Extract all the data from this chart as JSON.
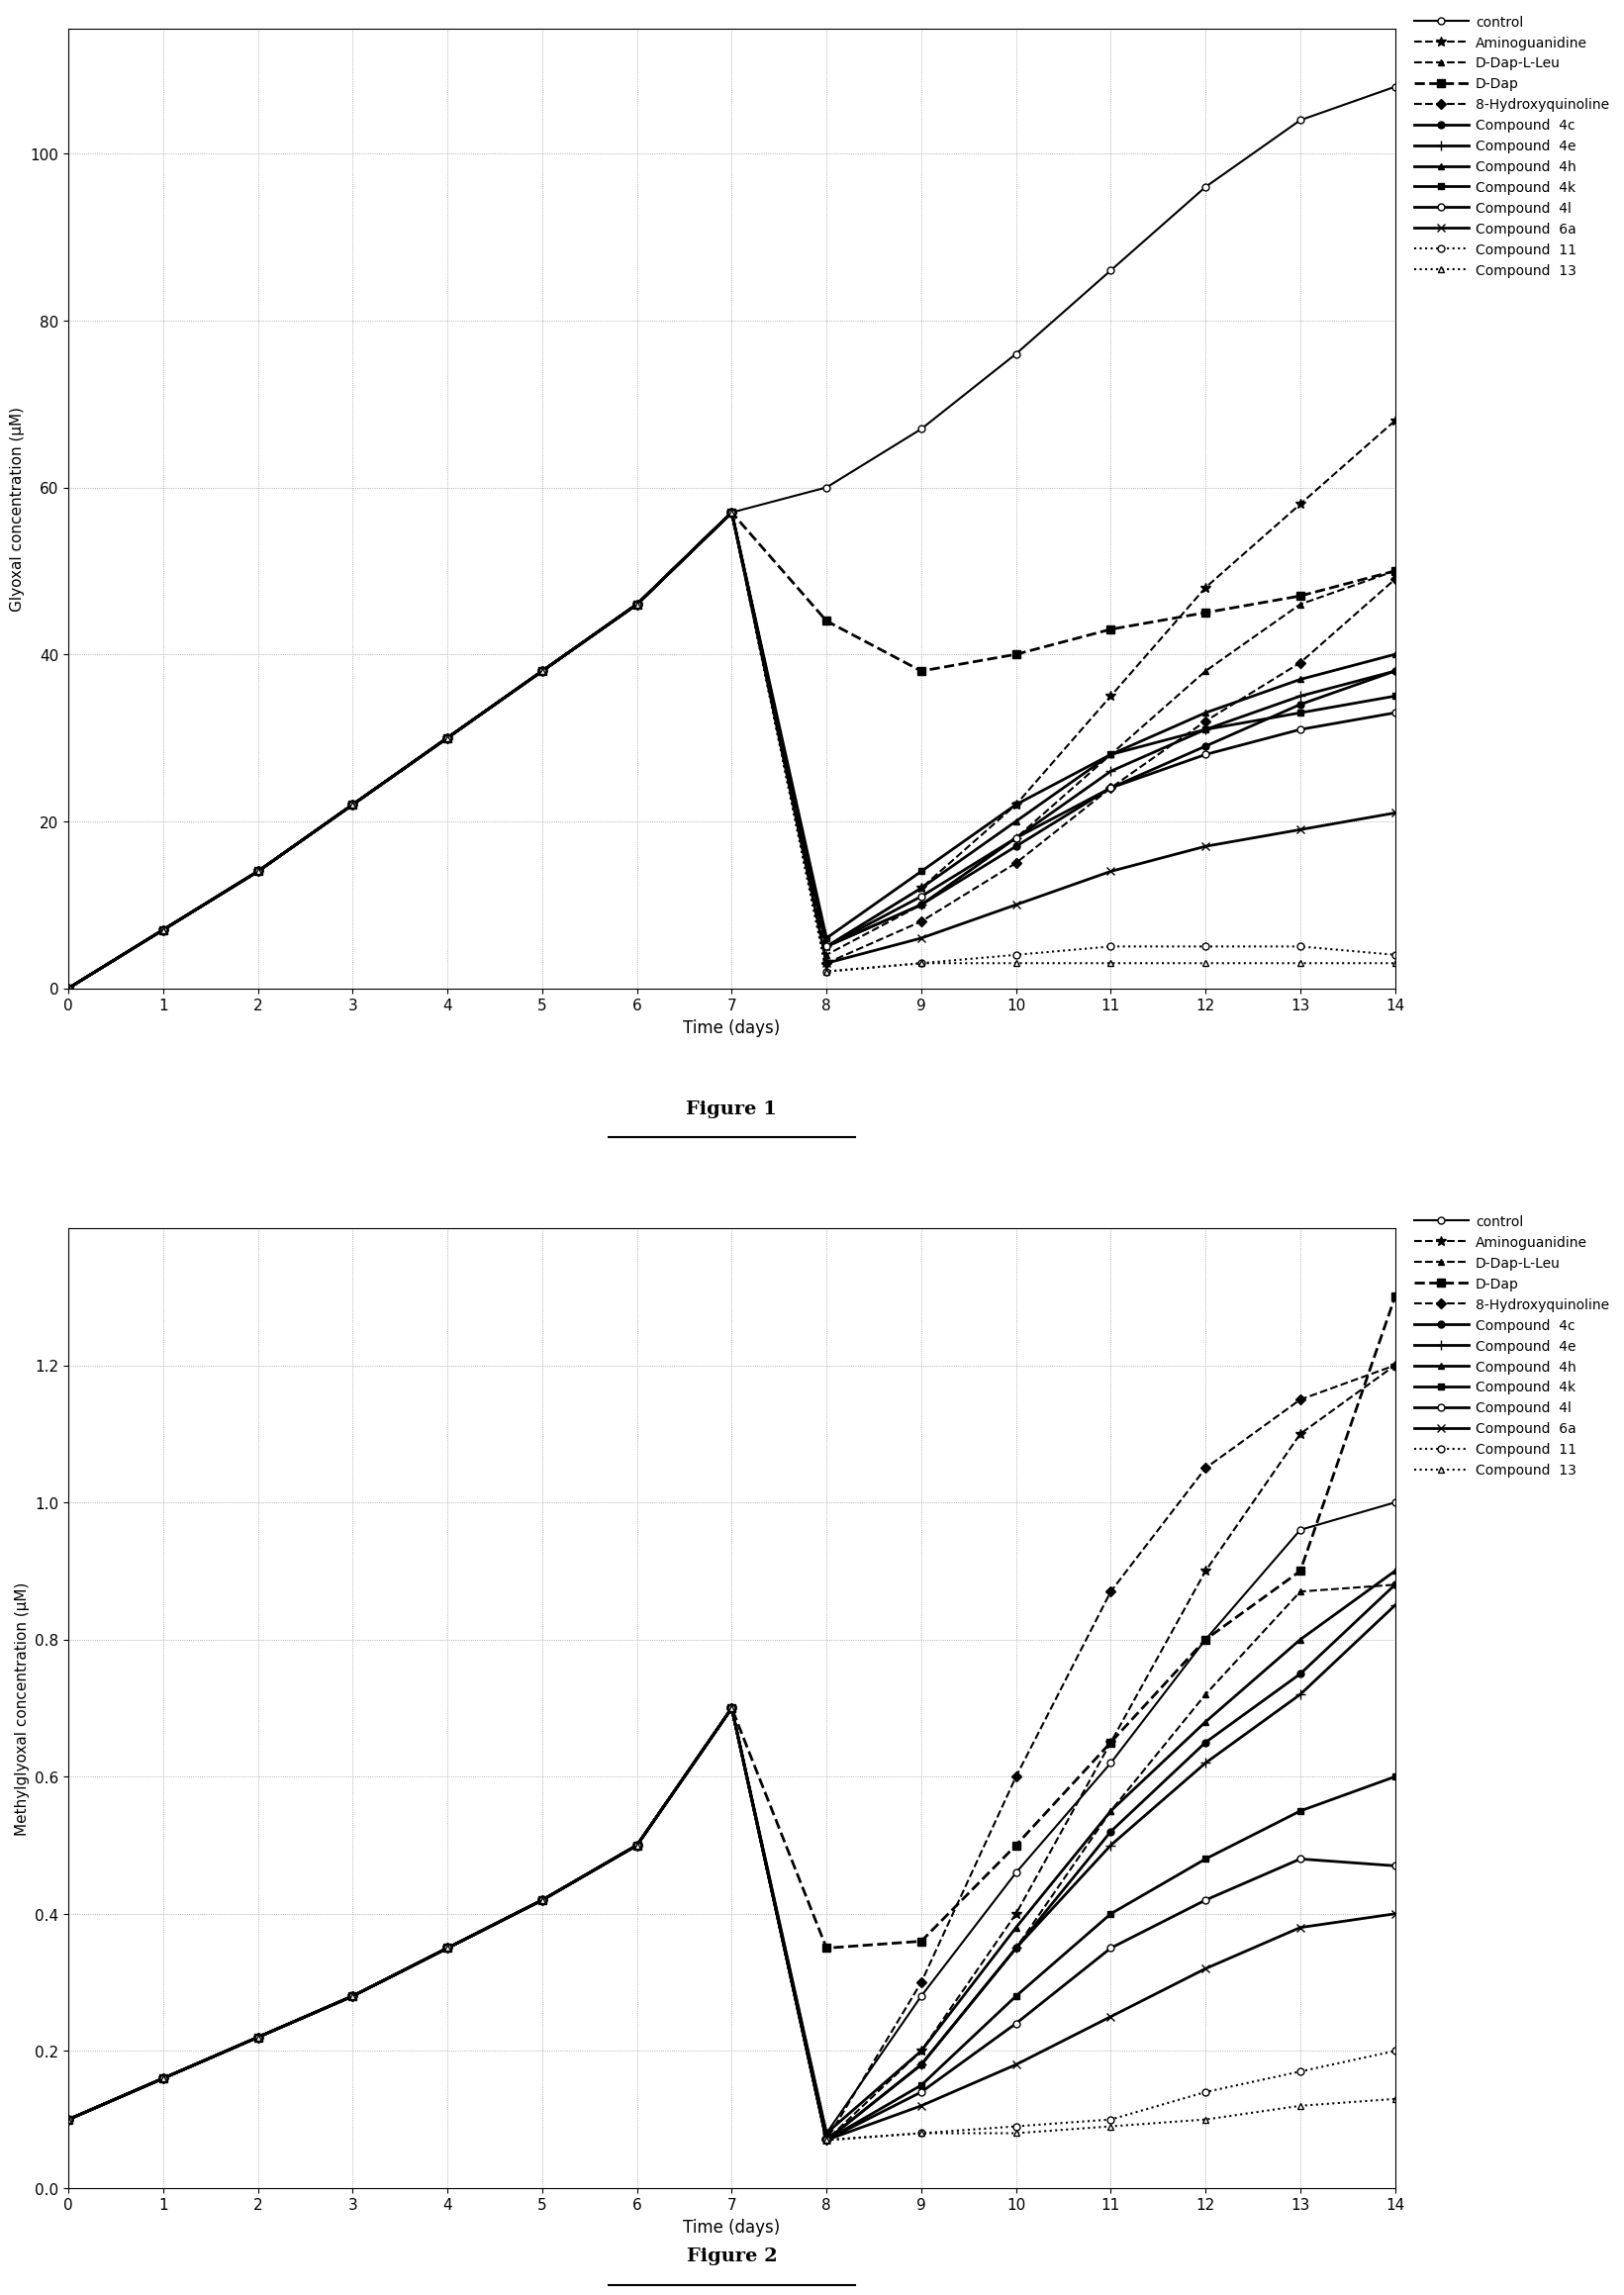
{
  "fig1": {
    "ylabel": "Glyoxal concentration (μM)",
    "xlabel": "Time (days)",
    "xlim": [
      0,
      14
    ],
    "ylim": [
      0,
      115
    ],
    "yticks": [
      0,
      20,
      40,
      60,
      80,
      100
    ],
    "xticks": [
      0,
      1,
      2,
      3,
      4,
      5,
      6,
      7,
      8,
      9,
      10,
      11,
      12,
      13,
      14
    ],
    "series": {
      "control": {
        "x": [
          0,
          1,
          2,
          3,
          4,
          5,
          6,
          7,
          8,
          9,
          10,
          11,
          12,
          13,
          14
        ],
        "y": [
          0,
          7,
          14,
          22,
          30,
          38,
          46,
          57,
          60,
          67,
          76,
          86,
          96,
          104,
          108
        ],
        "ls": "-",
        "marker": "o",
        "lw": 1.5,
        "ms": 5,
        "mfc": "white"
      },
      "Aminoguanidine": {
        "x": [
          0,
          1,
          2,
          3,
          4,
          5,
          6,
          7,
          8,
          9,
          10,
          11,
          12,
          13,
          14
        ],
        "y": [
          0,
          7,
          14,
          22,
          30,
          38,
          46,
          57,
          5,
          12,
          22,
          35,
          48,
          58,
          68
        ],
        "ls": "--",
        "marker": "*",
        "lw": 1.5,
        "ms": 7,
        "mfc": "black"
      },
      "D-Dap-L-Leu": {
        "x": [
          0,
          1,
          2,
          3,
          4,
          5,
          6,
          7,
          8,
          9,
          10,
          11,
          12,
          13,
          14
        ],
        "y": [
          0,
          7,
          14,
          22,
          30,
          38,
          46,
          57,
          4,
          10,
          18,
          28,
          38,
          46,
          50
        ],
        "ls": "--",
        "marker": "^",
        "lw": 1.5,
        "ms": 5,
        "mfc": "black"
      },
      "D-Dap": {
        "x": [
          0,
          1,
          2,
          3,
          4,
          5,
          6,
          7,
          8,
          9,
          10,
          11,
          12,
          13,
          14
        ],
        "y": [
          0,
          7,
          14,
          22,
          30,
          38,
          46,
          57,
          44,
          38,
          40,
          43,
          45,
          47,
          50
        ],
        "ls": "--",
        "marker": "s",
        "lw": 2.0,
        "ms": 6,
        "mfc": "black"
      },
      "8-Hydroxyquinoline": {
        "x": [
          0,
          1,
          2,
          3,
          4,
          5,
          6,
          7,
          8,
          9,
          10,
          11,
          12,
          13,
          14
        ],
        "y": [
          0,
          7,
          14,
          22,
          30,
          38,
          46,
          57,
          3,
          8,
          15,
          24,
          32,
          39,
          49
        ],
        "ls": "--",
        "marker": "D",
        "lw": 1.5,
        "ms": 5,
        "mfc": "black"
      },
      "Compound 4c": {
        "x": [
          0,
          1,
          2,
          3,
          4,
          5,
          6,
          7,
          8,
          9,
          10,
          11,
          12,
          13,
          14
        ],
        "y": [
          0,
          7,
          14,
          22,
          30,
          38,
          46,
          57,
          5,
          10,
          17,
          24,
          29,
          34,
          38
        ],
        "ls": "-",
        "marker": "o",
        "lw": 2.0,
        "ms": 5,
        "mfc": "black"
      },
      "Compound 4e": {
        "x": [
          0,
          1,
          2,
          3,
          4,
          5,
          6,
          7,
          8,
          9,
          10,
          11,
          12,
          13,
          14
        ],
        "y": [
          0,
          7,
          14,
          22,
          30,
          38,
          46,
          57,
          5,
          10,
          18,
          26,
          31,
          35,
          38
        ],
        "ls": "-",
        "marker": "+",
        "lw": 2.0,
        "ms": 7,
        "mfc": "black"
      },
      "Compound 4h": {
        "x": [
          0,
          1,
          2,
          3,
          4,
          5,
          6,
          7,
          8,
          9,
          10,
          11,
          12,
          13,
          14
        ],
        "y": [
          0,
          7,
          14,
          22,
          30,
          38,
          46,
          57,
          5,
          12,
          20,
          28,
          33,
          37,
          40
        ],
        "ls": "-",
        "marker": "^",
        "lw": 2.0,
        "ms": 5,
        "mfc": "black"
      },
      "Compound 4k": {
        "x": [
          0,
          1,
          2,
          3,
          4,
          5,
          6,
          7,
          8,
          9,
          10,
          11,
          12,
          13,
          14
        ],
        "y": [
          0,
          7,
          14,
          22,
          30,
          38,
          46,
          57,
          6,
          14,
          22,
          28,
          31,
          33,
          35
        ],
        "ls": "-",
        "marker": "s",
        "lw": 2.0,
        "ms": 5,
        "mfc": "black"
      },
      "Compound 4l": {
        "x": [
          0,
          1,
          2,
          3,
          4,
          5,
          6,
          7,
          8,
          9,
          10,
          11,
          12,
          13,
          14
        ],
        "y": [
          0,
          7,
          14,
          22,
          30,
          38,
          46,
          57,
          5,
          11,
          18,
          24,
          28,
          31,
          33
        ],
        "ls": "-",
        "marker": "o",
        "lw": 2.0,
        "ms": 5,
        "mfc": "white"
      },
      "Compound 6a": {
        "x": [
          0,
          1,
          2,
          3,
          4,
          5,
          6,
          7,
          8,
          9,
          10,
          11,
          12,
          13,
          14
        ],
        "y": [
          0,
          7,
          14,
          22,
          30,
          38,
          46,
          57,
          3,
          6,
          10,
          14,
          17,
          19,
          21
        ],
        "ls": "-",
        "marker": "x",
        "lw": 2.0,
        "ms": 6,
        "mfc": "black"
      },
      "Compound 11": {
        "x": [
          0,
          1,
          2,
          3,
          4,
          5,
          6,
          7,
          8,
          9,
          10,
          11,
          12,
          13,
          14
        ],
        "y": [
          0,
          7,
          14,
          22,
          30,
          38,
          46,
          57,
          2,
          3,
          4,
          5,
          5,
          5,
          4
        ],
        "ls": ":",
        "marker": "o",
        "lw": 1.5,
        "ms": 5,
        "mfc": "white"
      },
      "Compound 13": {
        "x": [
          0,
          1,
          2,
          3,
          4,
          5,
          6,
          7,
          8,
          9,
          10,
          11,
          12,
          13,
          14
        ],
        "y": [
          0,
          7,
          14,
          22,
          30,
          38,
          46,
          57,
          2,
          3,
          3,
          3,
          3,
          3,
          3
        ],
        "ls": ":",
        "marker": "^",
        "lw": 1.5,
        "ms": 5,
        "mfc": "white"
      }
    }
  },
  "fig2": {
    "ylabel": "Methylglyoxal concentration (μM)",
    "xlabel": "Time (days)",
    "xlim": [
      0,
      14
    ],
    "ylim": [
      0.0,
      1.4
    ],
    "yticks": [
      0.0,
      0.2,
      0.4,
      0.6,
      0.8,
      1.0,
      1.2
    ],
    "xticks": [
      0,
      1,
      2,
      3,
      4,
      5,
      6,
      7,
      8,
      9,
      10,
      11,
      12,
      13,
      14
    ],
    "series": {
      "control": {
        "x": [
          0,
          1,
          2,
          3,
          4,
          5,
          6,
          7,
          8,
          9,
          10,
          11,
          12,
          13,
          14
        ],
        "y": [
          0.1,
          0.16,
          0.22,
          0.28,
          0.35,
          0.42,
          0.5,
          0.7,
          0.08,
          0.28,
          0.46,
          0.62,
          0.8,
          0.96,
          1.0
        ],
        "ls": "-",
        "marker": "o",
        "lw": 1.5,
        "ms": 5,
        "mfc": "white"
      },
      "Aminoguanidine": {
        "x": [
          0,
          1,
          2,
          3,
          4,
          5,
          6,
          7,
          8,
          9,
          10,
          11,
          12,
          13,
          14
        ],
        "y": [
          0.1,
          0.16,
          0.22,
          0.28,
          0.35,
          0.42,
          0.5,
          0.7,
          0.07,
          0.2,
          0.4,
          0.65,
          0.9,
          1.1,
          1.2
        ],
        "ls": "--",
        "marker": "*",
        "lw": 1.5,
        "ms": 7,
        "mfc": "black"
      },
      "D-Dap-L-Leu": {
        "x": [
          0,
          1,
          2,
          3,
          4,
          5,
          6,
          7,
          8,
          9,
          10,
          11,
          12,
          13,
          14
        ],
        "y": [
          0.1,
          0.16,
          0.22,
          0.28,
          0.35,
          0.42,
          0.5,
          0.7,
          0.07,
          0.18,
          0.35,
          0.55,
          0.72,
          0.87,
          0.88
        ],
        "ls": "--",
        "marker": "^",
        "lw": 1.5,
        "ms": 5,
        "mfc": "black"
      },
      "D-Dap": {
        "x": [
          0,
          1,
          2,
          3,
          4,
          5,
          6,
          7,
          8,
          9,
          10,
          11,
          12,
          13,
          14
        ],
        "y": [
          0.1,
          0.16,
          0.22,
          0.28,
          0.35,
          0.42,
          0.5,
          0.7,
          0.35,
          0.36,
          0.5,
          0.65,
          0.8,
          0.9,
          1.3
        ],
        "ls": "--",
        "marker": "s",
        "lw": 2.0,
        "ms": 6,
        "mfc": "black"
      },
      "8-Hydroxyquinoline": {
        "x": [
          0,
          1,
          2,
          3,
          4,
          5,
          6,
          7,
          8,
          9,
          10,
          11,
          12,
          13,
          14
        ],
        "y": [
          0.1,
          0.16,
          0.22,
          0.28,
          0.35,
          0.42,
          0.5,
          0.7,
          0.07,
          0.3,
          0.6,
          0.87,
          1.05,
          1.15,
          1.2
        ],
        "ls": "--",
        "marker": "D",
        "lw": 1.5,
        "ms": 5,
        "mfc": "black"
      },
      "Compound 4c": {
        "x": [
          0,
          1,
          2,
          3,
          4,
          5,
          6,
          7,
          8,
          9,
          10,
          11,
          12,
          13,
          14
        ],
        "y": [
          0.1,
          0.16,
          0.22,
          0.28,
          0.35,
          0.42,
          0.5,
          0.7,
          0.07,
          0.18,
          0.35,
          0.52,
          0.65,
          0.75,
          0.88
        ],
        "ls": "-",
        "marker": "o",
        "lw": 2.0,
        "ms": 5,
        "mfc": "black"
      },
      "Compound 4e": {
        "x": [
          0,
          1,
          2,
          3,
          4,
          5,
          6,
          7,
          8,
          9,
          10,
          11,
          12,
          13,
          14
        ],
        "y": [
          0.1,
          0.16,
          0.22,
          0.28,
          0.35,
          0.42,
          0.5,
          0.7,
          0.07,
          0.18,
          0.35,
          0.5,
          0.62,
          0.72,
          0.85
        ],
        "ls": "-",
        "marker": "+",
        "lw": 2.0,
        "ms": 7,
        "mfc": "black"
      },
      "Compound 4h": {
        "x": [
          0,
          1,
          2,
          3,
          4,
          5,
          6,
          7,
          8,
          9,
          10,
          11,
          12,
          13,
          14
        ],
        "y": [
          0.1,
          0.16,
          0.22,
          0.28,
          0.35,
          0.42,
          0.5,
          0.7,
          0.08,
          0.2,
          0.38,
          0.55,
          0.68,
          0.8,
          0.9
        ],
        "ls": "-",
        "marker": "^",
        "lw": 2.0,
        "ms": 5,
        "mfc": "black"
      },
      "Compound 4k": {
        "x": [
          0,
          1,
          2,
          3,
          4,
          5,
          6,
          7,
          8,
          9,
          10,
          11,
          12,
          13,
          14
        ],
        "y": [
          0.1,
          0.16,
          0.22,
          0.28,
          0.35,
          0.42,
          0.5,
          0.7,
          0.07,
          0.15,
          0.28,
          0.4,
          0.48,
          0.55,
          0.6
        ],
        "ls": "-",
        "marker": "s",
        "lw": 2.0,
        "ms": 5,
        "mfc": "black"
      },
      "Compound 4l": {
        "x": [
          0,
          1,
          2,
          3,
          4,
          5,
          6,
          7,
          8,
          9,
          10,
          11,
          12,
          13,
          14
        ],
        "y": [
          0.1,
          0.16,
          0.22,
          0.28,
          0.35,
          0.42,
          0.5,
          0.7,
          0.07,
          0.14,
          0.24,
          0.35,
          0.42,
          0.48,
          0.47
        ],
        "ls": "-",
        "marker": "o",
        "lw": 2.0,
        "ms": 5,
        "mfc": "white"
      },
      "Compound 6a": {
        "x": [
          0,
          1,
          2,
          3,
          4,
          5,
          6,
          7,
          8,
          9,
          10,
          11,
          12,
          13,
          14
        ],
        "y": [
          0.1,
          0.16,
          0.22,
          0.28,
          0.35,
          0.42,
          0.5,
          0.7,
          0.07,
          0.12,
          0.18,
          0.25,
          0.32,
          0.38,
          0.4
        ],
        "ls": "-",
        "marker": "x",
        "lw": 2.0,
        "ms": 6,
        "mfc": "black"
      },
      "Compound 11": {
        "x": [
          0,
          1,
          2,
          3,
          4,
          5,
          6,
          7,
          8,
          9,
          10,
          11,
          12,
          13,
          14
        ],
        "y": [
          0.1,
          0.16,
          0.22,
          0.28,
          0.35,
          0.42,
          0.5,
          0.7,
          0.07,
          0.08,
          0.09,
          0.1,
          0.14,
          0.17,
          0.2
        ],
        "ls": ":",
        "marker": "o",
        "lw": 1.5,
        "ms": 5,
        "mfc": "white"
      },
      "Compound 13": {
        "x": [
          0,
          1,
          2,
          3,
          4,
          5,
          6,
          7,
          8,
          9,
          10,
          11,
          12,
          13,
          14
        ],
        "y": [
          0.1,
          0.16,
          0.22,
          0.28,
          0.35,
          0.42,
          0.5,
          0.7,
          0.07,
          0.08,
          0.08,
          0.09,
          0.1,
          0.12,
          0.13
        ],
        "ls": ":",
        "marker": "^",
        "lw": 1.5,
        "ms": 5,
        "mfc": "white"
      }
    }
  },
  "fig1_label": "Figure 1",
  "fig2_label": "Figure 2",
  "legend_order": [
    "control",
    "Aminoguanidine",
    "D-Dap-L-Leu",
    "D-Dap",
    "8-Hydroxyquinoline",
    "Compound 4c",
    "Compound 4e",
    "Compound 4h",
    "Compound 4k",
    "Compound 4l",
    "Compound 6a",
    "Compound 11",
    "Compound 13"
  ],
  "legend_labels": {
    "control": "control",
    "Aminoguanidine": "Aminoguanidine",
    "D-Dap-L-Leu": "D-Dap-L-Leu",
    "D-Dap": "D-Dap",
    "8-Hydroxyquinoline": "8-Hydroxyquinoline",
    "Compound 4c": "Compound  4c",
    "Compound 4e": "Compound  4e",
    "Compound 4h": "Compound  4h",
    "Compound 4k": "Compound  4k",
    "Compound 4l": "Compound  4l",
    "Compound 6a": "Compound  6a",
    "Compound 11": "Compound  11",
    "Compound 13": "Compound  13"
  },
  "color": "#000000"
}
